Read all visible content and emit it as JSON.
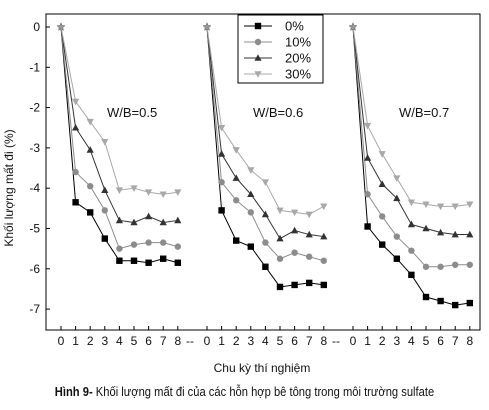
{
  "chart_data": {
    "type": "line",
    "ylabel": "Khối lượng mất đi (%)",
    "xlabel": "Chu kỳ thí nghiệm",
    "ylim": [
      -7.5,
      0.3
    ],
    "yticks": [
      0,
      -1,
      -2,
      -3,
      -4,
      -5,
      -6,
      -7
    ],
    "x_tick_labels": [
      "0",
      "1",
      "2",
      "3",
      "4",
      "5",
      "6",
      "7",
      "8"
    ],
    "panel_separator": "--",
    "legend": {
      "placement": "top-center",
      "entries": [
        "0%",
        "10%",
        "20%",
        "30%"
      ]
    },
    "grid": false,
    "panels": [
      {
        "label": "W/B=0.5",
        "x": [
          0,
          1,
          2,
          3,
          4,
          5,
          6,
          7,
          8
        ],
        "series": [
          {
            "name": "0%",
            "marker": "square",
            "values": [
              0,
              -4.35,
              -4.6,
              -5.25,
              -5.8,
              -5.8,
              -5.85,
              -5.75,
              -5.85
            ]
          },
          {
            "name": "10%",
            "marker": "circle",
            "values": [
              0,
              -3.6,
              -3.95,
              -4.55,
              -5.5,
              -5.4,
              -5.35,
              -5.35,
              -5.45
            ]
          },
          {
            "name": "20%",
            "marker": "triangle-up",
            "values": [
              0,
              -2.5,
              -3.05,
              -4.05,
              -4.8,
              -4.85,
              -4.7,
              -4.85,
              -4.8
            ]
          },
          {
            "name": "30%",
            "marker": "triangle-down",
            "values": [
              0,
              -1.85,
              -2.35,
              -2.85,
              -4.05,
              -4.0,
              -4.1,
              -4.15,
              -4.1
            ]
          }
        ]
      },
      {
        "label": "W/B=0.6",
        "x": [
          0,
          1,
          2,
          3,
          4,
          5,
          6,
          7,
          8
        ],
        "series": [
          {
            "name": "0%",
            "marker": "square",
            "values": [
              0,
              -4.55,
              -5.3,
              -5.45,
              -5.95,
              -6.45,
              -6.4,
              -6.35,
              -6.4
            ]
          },
          {
            "name": "10%",
            "marker": "circle",
            "values": [
              0,
              -3.85,
              -4.3,
              -4.6,
              -5.35,
              -5.75,
              -5.6,
              -5.7,
              -5.8
            ]
          },
          {
            "name": "20%",
            "marker": "triangle-up",
            "values": [
              0,
              -3.15,
              -3.75,
              -4.15,
              -4.65,
              -5.25,
              -5.05,
              -5.15,
              -5.2
            ]
          },
          {
            "name": "30%",
            "marker": "triangle-down",
            "values": [
              0,
              -2.5,
              -3.05,
              -3.55,
              -3.85,
              -4.55,
              -4.6,
              -4.65,
              -4.45
            ]
          }
        ]
      },
      {
        "label": "W/B=0.7",
        "x": [
          0,
          1,
          2,
          3,
          4,
          5,
          6,
          7,
          8
        ],
        "series": [
          {
            "name": "0%",
            "marker": "square",
            "values": [
              0,
              -4.95,
              -5.4,
              -5.75,
              -6.15,
              -6.7,
              -6.8,
              -6.9,
              -6.85
            ]
          },
          {
            "name": "10%",
            "marker": "circle",
            "values": [
              0,
              -4.15,
              -4.7,
              -5.2,
              -5.55,
              -5.95,
              -5.95,
              -5.9,
              -5.9
            ]
          },
          {
            "name": "20%",
            "marker": "triangle-up",
            "values": [
              0,
              -3.25,
              -3.9,
              -4.25,
              -4.9,
              -5.0,
              -5.1,
              -5.15,
              -5.15
            ]
          },
          {
            "name": "30%",
            "marker": "triangle-down",
            "values": [
              0,
              -2.45,
              -3.15,
              -3.75,
              -4.35,
              -4.4,
              -4.45,
              -4.45,
              -4.4
            ]
          }
        ]
      }
    ]
  },
  "colors": {
    "0%": "#000000",
    "10%": "#8c8c8c",
    "20%": "#333333",
    "30%": "#a8a8a8",
    "axis": "#000000"
  },
  "caption": {
    "prefix": "Hình 9-",
    "text": " Khối lượng mất đi của các hỗn hợp bê tông trong môi trường sulfate"
  }
}
